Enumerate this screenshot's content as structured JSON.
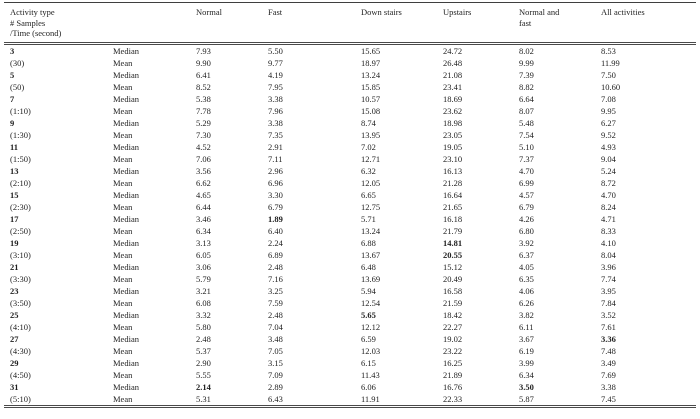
{
  "table": {
    "header_col1_lines": [
      "Activity type",
      "# Samples",
      "/Time (second)"
    ],
    "col_headers": [
      "Normal",
      "Fast",
      "Down stairs",
      "Upstairs",
      "Normal and\nfast",
      "All activities"
    ],
    "stat_labels": {
      "median": "Median",
      "mean": "Mean"
    },
    "rows": [
      {
        "label": "3",
        "sub": "(30)",
        "median": [
          "7.93",
          "5.50",
          "15.65",
          "24.72",
          "8.02",
          "8.53"
        ],
        "median_bold": [],
        "mean": [
          "9.90",
          "9.77",
          "18.97",
          "26.48",
          "9.99",
          "11.99"
        ],
        "mean_bold": []
      },
      {
        "label": "5",
        "sub": "(50)",
        "median": [
          "6.41",
          "4.19",
          "13.24",
          "21.08",
          "7.39",
          "7.50"
        ],
        "median_bold": [],
        "mean": [
          "8.52",
          "7.95",
          "15.85",
          "23.41",
          "8.82",
          "10.60"
        ],
        "mean_bold": []
      },
      {
        "label": "7",
        "sub": "(1:10)",
        "median": [
          "5.38",
          "3.38",
          "10.57",
          "18.69",
          "6.64",
          "7.08"
        ],
        "median_bold": [],
        "mean": [
          "7.78",
          "7.96",
          "15.08",
          "23.62",
          "8.07",
          "9.95"
        ],
        "mean_bold": []
      },
      {
        "label": "9",
        "sub": "(1:30)",
        "median": [
          "5.29",
          "3.38",
          "8.74",
          "18.98",
          "5.48",
          "6.27"
        ],
        "median_bold": [],
        "mean": [
          "7.30",
          "7.35",
          "13.95",
          "23.05",
          "7.54",
          "9.52"
        ],
        "mean_bold": []
      },
      {
        "label": "11",
        "sub": "(1:50)",
        "median": [
          "4.52",
          "2.91",
          "7.02",
          "19.05",
          "5.10",
          "4.93"
        ],
        "median_bold": [],
        "mean": [
          "7.06",
          "7.11",
          "12.71",
          "23.10",
          "7.37",
          "9.04"
        ],
        "mean_bold": []
      },
      {
        "label": "13",
        "sub": "(2:10)",
        "median": [
          "3.56",
          "2.96",
          "6.32",
          "16.13",
          "4.70",
          "5.24"
        ],
        "median_bold": [],
        "mean": [
          "6.62",
          "6.96",
          "12.05",
          "21.28",
          "6.99",
          "8.72"
        ],
        "mean_bold": []
      },
      {
        "label": "15",
        "sub": "(2:30)",
        "median": [
          "4.65",
          "3.30",
          "6.65",
          "16.64",
          "4.57",
          "4.70"
        ],
        "median_bold": [],
        "mean": [
          "6.44",
          "6.79",
          "12.75",
          "21.65",
          "6.79",
          "8.24"
        ],
        "mean_bold": []
      },
      {
        "label": "17",
        "sub": "(2:50)",
        "median": [
          "3.46",
          "1.89",
          "5.71",
          "16.18",
          "4.26",
          "4.71"
        ],
        "median_bold": [
          1
        ],
        "mean": [
          "6.34",
          "6.40",
          "13.24",
          "21.79",
          "6.80",
          "8.33"
        ],
        "mean_bold": []
      },
      {
        "label": "19",
        "sub": "(3:10)",
        "median": [
          "3.13",
          "2.24",
          "6.88",
          "14.81",
          "3.92",
          "4.10"
        ],
        "median_bold": [
          3
        ],
        "mean": [
          "6.05",
          "6.89",
          "13.67",
          "20.55",
          "6.37",
          "8.04"
        ],
        "mean_bold": [
          3
        ]
      },
      {
        "label": "21",
        "sub": "(3:30)",
        "median": [
          "3.06",
          "2.48",
          "6.48",
          "15.12",
          "4.05",
          "3.96"
        ],
        "median_bold": [],
        "mean": [
          "5.79",
          "7.16",
          "13.69",
          "20.49",
          "6.35",
          "7.74"
        ],
        "mean_bold": []
      },
      {
        "label": "23",
        "sub": "(3:50)",
        "median": [
          "3.21",
          "3.25",
          "5.94",
          "16.58",
          "4.06",
          "3.95"
        ],
        "median_bold": [],
        "mean": [
          "6.08",
          "7.59",
          "12.54",
          "21.59",
          "6.26",
          "7.84"
        ],
        "mean_bold": []
      },
      {
        "label": "25",
        "sub": "(4:10)",
        "median": [
          "3.32",
          "2.48",
          "5.65",
          "18.42",
          "3.82",
          "3.52"
        ],
        "median_bold": [
          2
        ],
        "mean": [
          "5.80",
          "7.04",
          "12.12",
          "22.27",
          "6.11",
          "7.61"
        ],
        "mean_bold": []
      },
      {
        "label": "27",
        "sub": "(4:30)",
        "median": [
          "2.48",
          "3.48",
          "6.59",
          "19.02",
          "3.67",
          "3.36"
        ],
        "median_bold": [
          5
        ],
        "mean": [
          "5.37",
          "7.05",
          "12.03",
          "23.22",
          "6.19",
          "7.48"
        ],
        "mean_bold": []
      },
      {
        "label": "29",
        "sub": "(4:50)",
        "median": [
          "2.90",
          "3.15",
          "6.15",
          "16.25",
          "3.99",
          "3.49"
        ],
        "median_bold": [],
        "mean": [
          "5.55",
          "7.09",
          "11.43",
          "21.89",
          "6.34",
          "7.69"
        ],
        "mean_bold": []
      },
      {
        "label": "31",
        "sub": "(5:10)",
        "median": [
          "2.14",
          "2.89",
          "6.06",
          "16.76",
          "3.50",
          "3.38"
        ],
        "median_bold": [
          0,
          4
        ],
        "mean": [
          "5.31",
          "6.43",
          "11.91",
          "22.33",
          "5.87",
          "7.45"
        ],
        "mean_bold": []
      }
    ],
    "colors": {
      "text": "#1f1f1f",
      "rule": "#4a4a4a",
      "background": "#ffffff"
    }
  }
}
